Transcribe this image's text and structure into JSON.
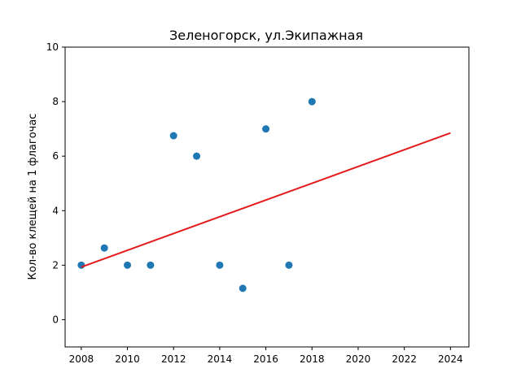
{
  "chart_data": {
    "type": "scatter",
    "title": "Зеленогорск, ул.Экипажная",
    "xlabel": "",
    "ylabel": "Кол-во клещей на 1 флагочас",
    "xlim": [
      2007.3,
      2024.8
    ],
    "ylim": [
      -1,
      10
    ],
    "xticks": [
      2008,
      2010,
      2012,
      2014,
      2016,
      2018,
      2020,
      2022,
      2024
    ],
    "yticks": [
      0,
      2,
      4,
      6,
      8,
      10
    ],
    "grid": false,
    "series": [
      {
        "kind": "scatter",
        "color": "#1f77b4",
        "x": [
          2008,
          2009,
          2010,
          2011,
          2012,
          2013,
          2014,
          2015,
          2016,
          2017,
          2018
        ],
        "y": [
          2.0,
          2.63,
          2.0,
          2.0,
          6.75,
          6.0,
          2.0,
          1.15,
          7.0,
          2.0,
          8.0
        ]
      },
      {
        "kind": "line",
        "color": "#e31a1c",
        "x": [
          2008,
          2024
        ],
        "y": [
          1.93,
          6.85
        ]
      }
    ]
  }
}
